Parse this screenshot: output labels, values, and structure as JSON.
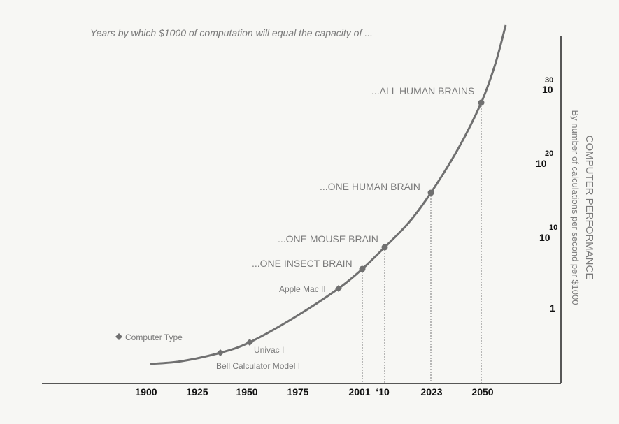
{
  "title": "Years by which $1000 of computation will equal the capacity of ...",
  "y_axis": {
    "title": "COMPUTER PERFORMANCE",
    "subtitle": "By number of calculations per second per $1000",
    "ticks": [
      {
        "base": "10",
        "exponent": "30"
      },
      {
        "base": "10",
        "exponent": "20"
      },
      {
        "base": "10",
        "exponent": "10"
      },
      {
        "base": "1"
      }
    ]
  },
  "x_axis": {
    "ticks": [
      "1900",
      "1925",
      "1950",
      "1975",
      "2001",
      "‘10",
      "2023",
      "2050"
    ]
  },
  "milestones": [
    "...ALL HUMAN BRAINS",
    "...ONE HUMAN BRAIN",
    "...ONE MOUSE BRAIN",
    "...ONE INSECT BRAIN"
  ],
  "computers": [
    "Apple Mac II",
    "Univac I",
    "Bell Calculator Model I"
  ],
  "legend": "Computer Type"
}
